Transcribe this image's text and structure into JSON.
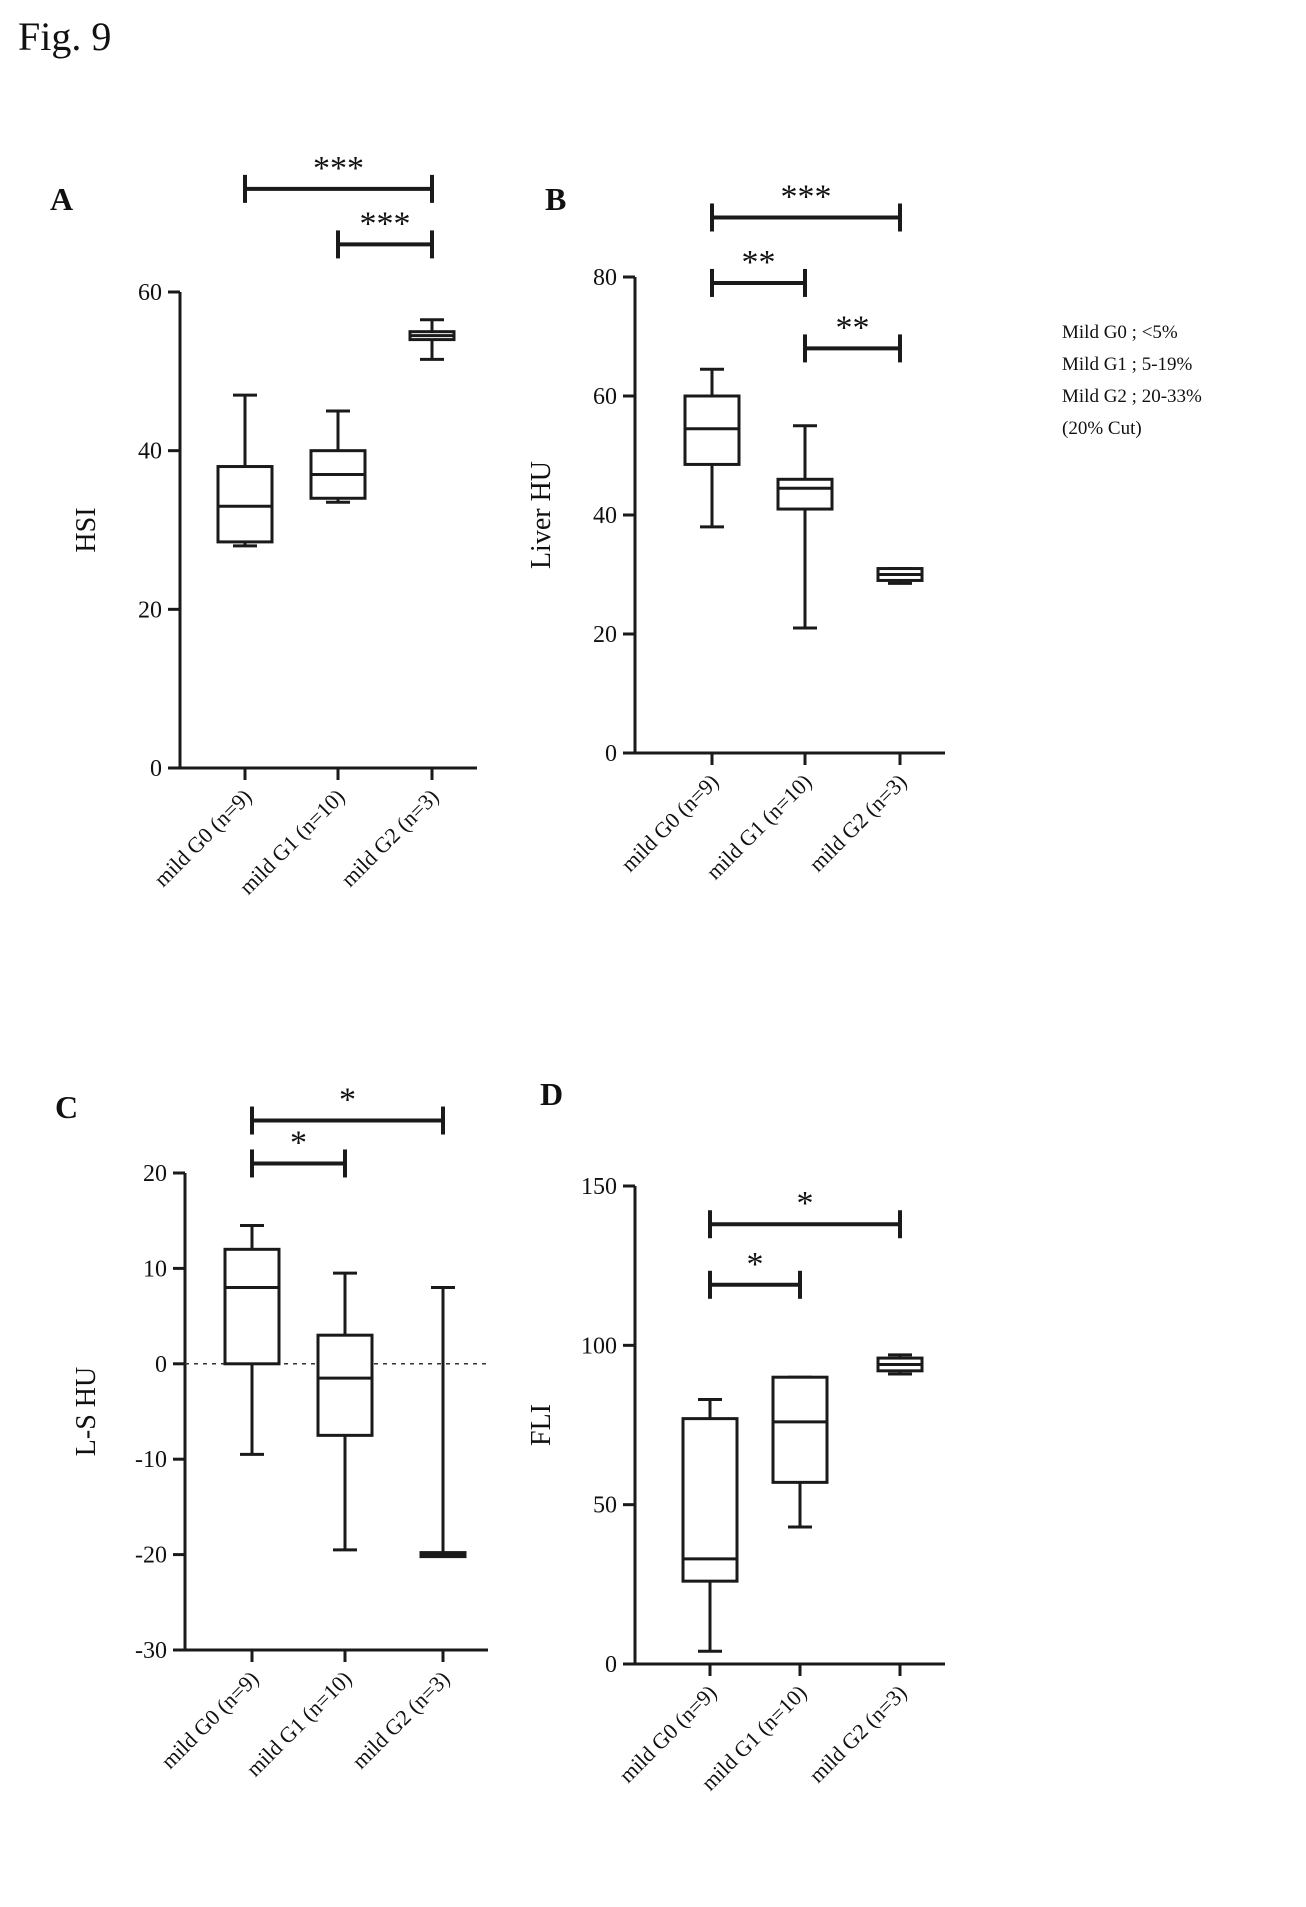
{
  "figure_label": "Fig. 9",
  "legend_note": [
    "Mild G0 ; <5%",
    "Mild G1 ; 5-19%",
    "Mild G2 ; 20-33%",
    "(20% Cut)"
  ],
  "chart_data": [
    {
      "panel": "A",
      "type": "box",
      "ylabel": "HSI",
      "ylim": [
        0,
        60
      ],
      "yticks": [
        0,
        20,
        40,
        60
      ],
      "categories": [
        "mild G0 (n=9)",
        "mild G1 (n=10)",
        "mild G2 (n=3)"
      ],
      "boxes": [
        {
          "min": 28,
          "q1": 28.5,
          "median": 33,
          "q3": 38,
          "max": 47
        },
        {
          "min": 33.5,
          "q1": 34,
          "median": 37,
          "q3": 40,
          "max": 45
        },
        {
          "min": 51.5,
          "q1": 54,
          "median": 54.5,
          "q3": 55,
          "max": 56.5
        }
      ],
      "zero_line": false,
      "significance": [
        {
          "from": 0,
          "to": 2,
          "label": "***",
          "y": 73
        },
        {
          "from": 1,
          "to": 2,
          "label": "***",
          "y": 66
        }
      ]
    },
    {
      "panel": "B",
      "type": "box",
      "ylabel": "Liver HU",
      "ylim": [
        0,
        80
      ],
      "yticks": [
        0,
        20,
        40,
        60,
        80
      ],
      "categories": [
        "mild G0 (n=9)",
        "mild G1 (n=10)",
        "mild G2 (n=3)"
      ],
      "boxes": [
        {
          "min": 38,
          "q1": 48.5,
          "median": 54.5,
          "q3": 60,
          "max": 64.5
        },
        {
          "min": 21,
          "q1": 41,
          "median": 44.5,
          "q3": 46,
          "max": 55
        },
        {
          "min": 28.5,
          "q1": 29,
          "median": 30,
          "q3": 31,
          "max": 31
        }
      ],
      "zero_line": false,
      "significance": [
        {
          "from": 0,
          "to": 2,
          "label": "***",
          "y": 90
        },
        {
          "from": 0,
          "to": 1,
          "label": "**",
          "y": 79
        },
        {
          "from": 1,
          "to": 2,
          "label": "**",
          "y": 68
        }
      ]
    },
    {
      "panel": "C",
      "type": "box",
      "ylabel": "L-S HU",
      "ylim": [
        -30,
        20
      ],
      "yticks": [
        -30,
        -20,
        -10,
        0,
        10,
        20
      ],
      "categories": [
        "mild G0 (n=9)",
        "mild G1 (n=10)",
        "mild G2 (n=3)"
      ],
      "boxes": [
        {
          "min": -9.5,
          "q1": 0,
          "median": 8,
          "q3": 12,
          "max": 14.5
        },
        {
          "min": -19.5,
          "q1": -7.5,
          "median": -1.5,
          "q3": 3,
          "max": 9.5
        },
        {
          "min": -20,
          "q1": -20,
          "median": -20,
          "q3": -20,
          "max": 8
        }
      ],
      "zero_line": true,
      "significance": [
        {
          "from": 0,
          "to": 2,
          "label": "*",
          "y": 25.5
        },
        {
          "from": 0,
          "to": 1,
          "label": "*",
          "y": 21
        }
      ]
    },
    {
      "panel": "D",
      "type": "box",
      "ylabel": "FLI",
      "ylim": [
        0,
        150
      ],
      "yticks": [
        0,
        50,
        100,
        150
      ],
      "categories": [
        "mild G0 (n=9)",
        "mild G1 (n=10)",
        "mild G2 (n=3)"
      ],
      "boxes": [
        {
          "min": 4,
          "q1": 26,
          "median": 33,
          "q3": 77,
          "max": 83
        },
        {
          "min": 43,
          "q1": 57,
          "median": 76,
          "q3": 90,
          "max": 90
        },
        {
          "min": 91,
          "q1": 92,
          "median": 94,
          "q3": 96,
          "max": 97
        }
      ],
      "zero_line": false,
      "significance": [
        {
          "from": 0,
          "to": 2,
          "label": "*",
          "y": 138
        },
        {
          "from": 0,
          "to": 1,
          "label": "*",
          "y": 119
        }
      ]
    }
  ]
}
